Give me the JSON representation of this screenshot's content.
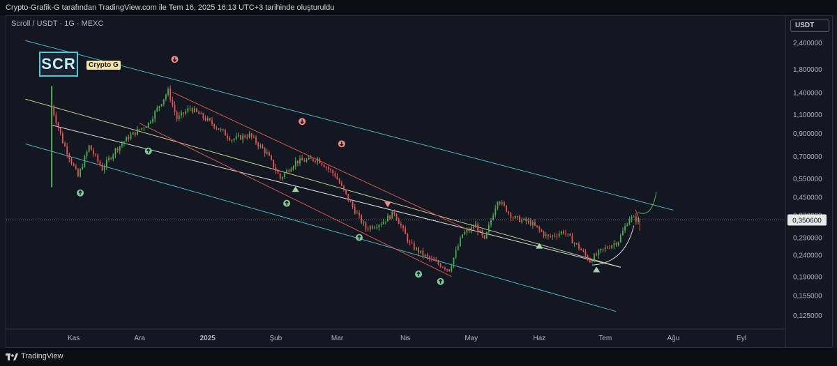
{
  "header": {
    "caption": "Crypto-Grafik-G tarafından TradingView.com ile Tem 16, 2025 16:13 UTC+3 tarihinde oluşturuldu"
  },
  "chart_meta": {
    "symbol_line": "Scroll / USDT · 1G · MEXC",
    "logo_text": "SCR",
    "brand_label": "Crypto G",
    "currency": "USDT"
  },
  "footer": {
    "brand": "TradingView"
  },
  "colors": {
    "background": "#131722",
    "up": "#26a69a",
    "down": "#ef5350",
    "bright_up": "#4caf50",
    "channel": "#4fb3bf",
    "midline": "#c9c98b",
    "wedge": "#d9534f"
  },
  "chart_data": {
    "type": "candlestick",
    "title": "",
    "x_ticks": [
      {
        "label": "Kas",
        "date": "2024-11-01"
      },
      {
        "label": "Ara",
        "date": "2024-12-01"
      },
      {
        "label": "2025",
        "date": "2025-01-01"
      },
      {
        "label": "Şub",
        "date": "2025-02-01"
      },
      {
        "label": "Mar",
        "date": "2025-03-01"
      },
      {
        "label": "Nis",
        "date": "2025-04-01"
      },
      {
        "label": "May",
        "date": "2025-05-01"
      },
      {
        "label": "Haz",
        "date": "2025-06-01"
      },
      {
        "label": "Tem",
        "date": "2025-07-01"
      },
      {
        "label": "Ağu",
        "date": "2025-08-01"
      },
      {
        "label": "Eyl",
        "date": "2025-09-01"
      }
    ],
    "y_scale": "log",
    "y_ticks": [
      "2,400000",
      "1,800000",
      "1,400000",
      "1,100000",
      "0,900000",
      "0,700000",
      "0,550000",
      "0,450000",
      "0,370000",
      "0,290000",
      "0,240000",
      "0,190000",
      "0,155000",
      "0,125000"
    ],
    "y_tick_values": [
      2.4,
      1.8,
      1.4,
      1.1,
      0.9,
      0.7,
      0.55,
      0.45,
      0.37,
      0.29,
      0.24,
      0.19,
      0.155,
      0.125
    ],
    "ylim": [
      0.1,
      3.0
    ],
    "current_price": {
      "label": "0,350600",
      "value": 0.3506
    },
    "price_path": [
      {
        "date": "2024-10-22",
        "price": 1.2
      },
      {
        "date": "2024-10-27",
        "price": 0.82
      },
      {
        "date": "2024-11-03",
        "price": 0.56
      },
      {
        "date": "2024-11-08",
        "price": 0.78
      },
      {
        "date": "2024-11-14",
        "price": 0.61
      },
      {
        "date": "2024-11-20",
        "price": 0.75
      },
      {
        "date": "2024-11-26",
        "price": 0.86
      },
      {
        "date": "2024-12-05",
        "price": 1.0
      },
      {
        "date": "2024-12-14",
        "price": 1.42
      },
      {
        "date": "2024-12-18",
        "price": 1.05
      },
      {
        "date": "2024-12-24",
        "price": 1.18
      },
      {
        "date": "2025-01-04",
        "price": 0.98
      },
      {
        "date": "2025-01-12",
        "price": 0.84
      },
      {
        "date": "2025-01-20",
        "price": 0.88
      },
      {
        "date": "2025-01-28",
        "price": 0.72
      },
      {
        "date": "2025-02-03",
        "price": 0.55
      },
      {
        "date": "2025-02-10",
        "price": 0.66
      },
      {
        "date": "2025-02-20",
        "price": 0.68
      },
      {
        "date": "2025-02-28",
        "price": 0.57
      },
      {
        "date": "2025-03-07",
        "price": 0.42
      },
      {
        "date": "2025-03-14",
        "price": 0.32
      },
      {
        "date": "2025-03-21",
        "price": 0.34
      },
      {
        "date": "2025-03-27",
        "price": 0.38
      },
      {
        "date": "2025-04-03",
        "price": 0.27
      },
      {
        "date": "2025-04-09",
        "price": 0.24
      },
      {
        "date": "2025-04-15",
        "price": 0.22
      },
      {
        "date": "2025-04-21",
        "price": 0.205
      },
      {
        "date": "2025-04-27",
        "price": 0.3
      },
      {
        "date": "2025-05-03",
        "price": 0.33
      },
      {
        "date": "2025-05-07",
        "price": 0.28
      },
      {
        "date": "2025-05-13",
        "price": 0.44
      },
      {
        "date": "2025-05-20",
        "price": 0.36
      },
      {
        "date": "2025-05-28",
        "price": 0.34
      },
      {
        "date": "2025-06-05",
        "price": 0.29
      },
      {
        "date": "2025-06-12",
        "price": 0.31
      },
      {
        "date": "2025-06-19",
        "price": 0.26
      },
      {
        "date": "2025-06-24",
        "price": 0.225
      },
      {
        "date": "2025-06-29",
        "price": 0.25
      },
      {
        "date": "2025-07-07",
        "price": 0.28
      },
      {
        "date": "2025-07-12",
        "price": 0.36
      },
      {
        "date": "2025-07-16",
        "price": 0.3506
      }
    ],
    "trendlines": [
      {
        "name": "channel-upper",
        "start": {
          "date": "2024-10-10",
          "price": 2.45
        },
        "end": {
          "date": "2025-08-01",
          "price": 0.39
        }
      },
      {
        "name": "channel-mid",
        "start": {
          "date": "2024-10-10",
          "price": 1.3
        },
        "end": {
          "date": "2025-07-08",
          "price": 0.21
        }
      },
      {
        "name": "channel-lower",
        "start": {
          "date": "2024-10-10",
          "price": 0.8
        },
        "end": {
          "date": "2025-07-06",
          "price": 0.13
        }
      },
      {
        "name": "channel-mid-2",
        "start": {
          "date": "2024-10-22",
          "price": 0.98
        },
        "end": {
          "date": "2025-07-08",
          "price": 0.21
        }
      },
      {
        "name": "wedge-upper",
        "start": {
          "date": "2024-12-16",
          "price": 1.4
        },
        "end": {
          "date": "2025-05-01",
          "price": 0.31
        }
      },
      {
        "name": "wedge-lower",
        "start": {
          "date": "2024-12-01",
          "price": 1.0
        },
        "end": {
          "date": "2025-04-22",
          "price": 0.19
        }
      }
    ],
    "markers": [
      {
        "type": "sell",
        "date": "2024-12-17",
        "price": 2.0
      },
      {
        "type": "sell",
        "date": "2025-02-13",
        "price": 1.02
      },
      {
        "type": "sell",
        "date": "2025-03-03",
        "price": 0.8
      },
      {
        "type": "buy",
        "date": "2024-11-04",
        "price": 0.47
      },
      {
        "type": "buy",
        "date": "2024-12-05",
        "price": 0.74
      },
      {
        "type": "buy",
        "date": "2025-02-06",
        "price": 0.42
      },
      {
        "type": "buy",
        "date": "2025-03-11",
        "price": 0.29
      },
      {
        "type": "buy",
        "date": "2025-04-07",
        "price": 0.195
      },
      {
        "type": "buy",
        "date": "2025-04-17",
        "price": 0.18
      },
      {
        "type": "tri-up",
        "date": "2025-02-10",
        "price": 0.49
      },
      {
        "type": "tri-up",
        "date": "2025-06-01",
        "price": 0.265
      },
      {
        "type": "tri-up",
        "date": "2025-06-27",
        "price": 0.205
      },
      {
        "type": "tri-down",
        "date": "2025-03-24",
        "price": 0.415
      }
    ]
  }
}
